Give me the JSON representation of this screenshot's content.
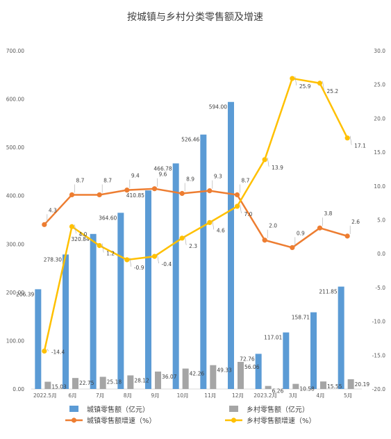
{
  "chart_data": {
    "type": "bar",
    "title": "按城镇与乡村分类零售额及增速",
    "categories": [
      "2022.5月",
      "6月",
      "7月",
      "8月",
      "9月",
      "10月",
      "11月",
      "12月",
      "2023.2月",
      "3月",
      "4月",
      "5月"
    ],
    "y_left": {
      "range": [
        0,
        700
      ],
      "ticks": [
        "0.00",
        "100.00",
        "200.00",
        "300.00",
        "400.00",
        "500.00",
        "600.00",
        "700.00"
      ]
    },
    "y_right": {
      "range": [
        -20,
        30
      ],
      "ticks": [
        "-20.0",
        "-15.0",
        "-10.0",
        "-5.0",
        "0.0",
        "5.0",
        "10.0",
        "15.0",
        "20.0",
        "25.0",
        "30.0"
      ]
    },
    "grid": false,
    "legend_position": "bottom",
    "series": [
      {
        "name": "城镇零售额（亿元）",
        "type": "bar",
        "axis": "left",
        "color": "#5B9BD5",
        "values": [
          206.39,
          278.3,
          320.84,
          364.6,
          410.85,
          466.78,
          526.46,
          594.0,
          72.76,
          117.01,
          158.71,
          211.85
        ],
        "labels": [
          "206.39",
          "278.30",
          "320.84",
          "364.60",
          "410.85",
          "466.78",
          "526.46",
          "594.00",
          "72.76",
          "117.01",
          "158.71",
          "211.85"
        ]
      },
      {
        "name": "乡村零售额（亿元）",
        "type": "bar",
        "axis": "left",
        "color": "#A5A5A5",
        "values": [
          15.03,
          22.75,
          25.18,
          28.12,
          36.07,
          42.26,
          49.33,
          56.06,
          6.26,
          10.58,
          15.55,
          20.19
        ],
        "labels": [
          "15.03",
          "22.75",
          "25.18",
          "28.12",
          "36.07",
          "42.26",
          "49.33",
          "56.06",
          "6.26",
          "10.58",
          "15.55",
          "20.19"
        ]
      },
      {
        "name": "城镇零售额增速（%）",
        "type": "line",
        "axis": "right",
        "color": "#ED7D31",
        "values": [
          4.3,
          8.7,
          8.7,
          9.4,
          9.6,
          8.9,
          9.3,
          8.7,
          2.0,
          0.9,
          3.8,
          2.6
        ],
        "labels": [
          "4.3",
          "8.7",
          "8.7",
          "9.4",
          "9.6",
          "8.9",
          "9.3",
          "8.7",
          "2.0",
          "0.9",
          "3.8",
          "2.6"
        ]
      },
      {
        "name": "乡村零售额增速（%）",
        "type": "line",
        "axis": "right",
        "color": "#FFC000",
        "values": [
          -14.4,
          4.0,
          1.2,
          -0.9,
          -0.4,
          2.3,
          4.6,
          7.0,
          13.9,
          25.9,
          25.2,
          17.1
        ],
        "labels": [
          "-14.4",
          "4.0",
          "1.2",
          "-0.9",
          "-0.4",
          "2.3",
          "4.6",
          "7.0",
          "13.9",
          "25.9",
          "25.2",
          "17.1"
        ]
      }
    ]
  }
}
